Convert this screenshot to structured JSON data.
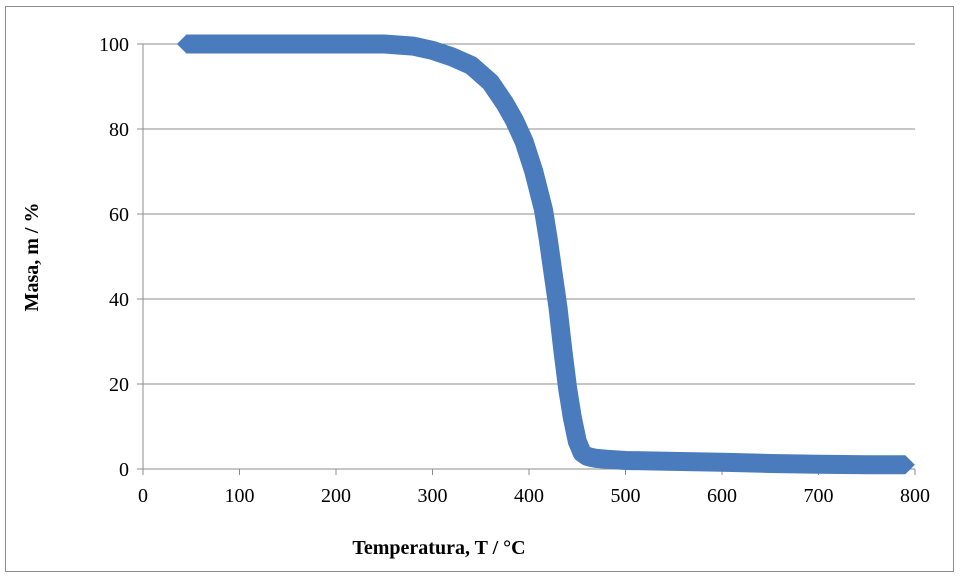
{
  "chart_data": {
    "type": "line",
    "title": "",
    "xlabel": "Temperatura, T / °C",
    "ylabel": "Masa, m / %",
    "xlim": [
      0,
      800
    ],
    "ylim": [
      0,
      100
    ],
    "xticks": [
      "0",
      "100",
      "200",
      "300",
      "400",
      "500",
      "600",
      "700",
      "800"
    ],
    "yticks": [
      "0",
      "20",
      "40",
      "60",
      "80",
      "100"
    ],
    "grid": {
      "horizontal": true,
      "vertical": false
    },
    "legend": "none",
    "series_color": "#4a7bbd",
    "grid_color": "#8c8c8c",
    "series": [
      {
        "x": [
          45,
          100,
          200,
          250,
          280,
          300,
          320,
          340,
          360,
          375,
          385,
          395,
          405,
          415,
          420,
          425,
          430,
          435,
          440,
          445,
          450,
          455,
          460,
          465,
          470,
          480,
          500,
          550,
          600,
          650,
          700,
          750,
          790
        ],
        "y": [
          100,
          100,
          100,
          100,
          99.5,
          98.5,
          97,
          95,
          91,
          86,
          82,
          77,
          70,
          61,
          54,
          46,
          38,
          28,
          19,
          12,
          6.5,
          3.8,
          3.0,
          2.7,
          2.5,
          2.3,
          2.0,
          1.8,
          1.6,
          1.3,
          1.1,
          1.0,
          1.0
        ]
      }
    ]
  }
}
